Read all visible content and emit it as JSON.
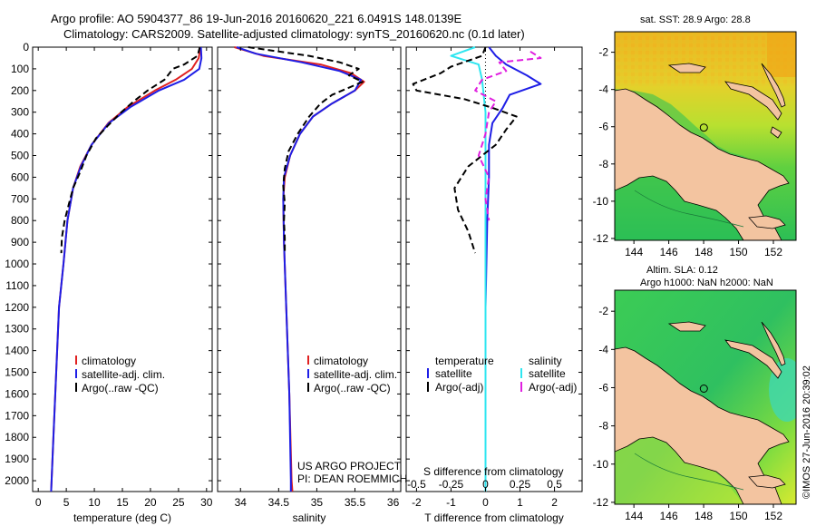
{
  "header": {
    "title_line1": "Argo profile: AO 5904377_86 19-Jun-2016 20160620_221 6.0491S 148.0139E",
    "title_line2": "Climatology: CARS2009. Satellite-adjusted climatology: synTS_20160620.nc (0.1d later)"
  },
  "colors": {
    "climatology": "#e02020",
    "satellite": "#1e1ee6",
    "argo": "#000000",
    "satellite_salinity": "#2ee6f0",
    "argo_adj_salinity": "#e020e0",
    "land": "#f3c4a0"
  },
  "depth_axis": {
    "ylim": [
      0,
      2050
    ],
    "ticks": [
      0,
      100,
      200,
      300,
      400,
      500,
      600,
      700,
      800,
      900,
      1000,
      1100,
      1200,
      1300,
      1400,
      1500,
      1600,
      1700,
      1800,
      1900,
      2000
    ]
  },
  "chart_data": [
    {
      "type": "line",
      "id": "temperature",
      "xlabel": "temperature (deg C)",
      "xlim": [
        -1,
        31
      ],
      "xticks": [
        0,
        5,
        10,
        15,
        20,
        25,
        30
      ],
      "legend": [
        "climatology",
        "satellite-adj. clim.",
        "Argo(..raw -QC)"
      ],
      "series": [
        {
          "name": "climatology",
          "color_key": "climatology",
          "style": "solid",
          "points": [
            [
              28.9,
              0
            ],
            [
              28.6,
              50
            ],
            [
              27.4,
              100
            ],
            [
              24.5,
              150
            ],
            [
              20.8,
              200
            ],
            [
              16,
              275
            ],
            [
              12.5,
              350
            ],
            [
              9.5,
              450
            ],
            [
              7.5,
              550
            ],
            [
              6.2,
              650
            ],
            [
              5.2,
              800
            ],
            [
              4.5,
              1000
            ],
            [
              3.7,
              1200
            ],
            [
              3.2,
              1500
            ],
            [
              2.7,
              1800
            ],
            [
              2.3,
              2050
            ]
          ]
        },
        {
          "name": "satellite-adj. clim.",
          "color_key": "satellite",
          "style": "solid",
          "points": [
            [
              29,
              0
            ],
            [
              29.1,
              50
            ],
            [
              28.7,
              100
            ],
            [
              26,
              150
            ],
            [
              21.5,
              200
            ],
            [
              16.5,
              275
            ],
            [
              12.6,
              350
            ],
            [
              9.5,
              450
            ],
            [
              7.6,
              550
            ],
            [
              6.2,
              650
            ],
            [
              5.2,
              800
            ],
            [
              4.5,
              1000
            ],
            [
              3.7,
              1200
            ],
            [
              3.2,
              1500
            ],
            [
              2.7,
              1800
            ],
            [
              2.3,
              2050
            ]
          ]
        },
        {
          "name": "Argo(..raw -QC)",
          "color_key": "argo",
          "style": "dash",
          "points": [
            [
              28.8,
              0
            ],
            [
              28.4,
              40
            ],
            [
              26,
              80
            ],
            [
              24,
              100
            ],
            [
              22.5,
              150
            ],
            [
              19.5,
              200
            ],
            [
              17,
              250
            ],
            [
              14.8,
              300
            ],
            [
              12.5,
              360
            ],
            [
              10.3,
              420
            ],
            [
              8.6,
              500
            ],
            [
              7.4,
              580
            ],
            [
              6.2,
              650
            ],
            [
              5.5,
              720
            ],
            [
              4.7,
              800
            ],
            [
              4.2,
              880
            ],
            [
              4.1,
              950
            ]
          ]
        }
      ]
    },
    {
      "type": "line",
      "id": "salinity",
      "xlabel": "salinity",
      "xlim": [
        33.7,
        36.1
      ],
      "xticks": [
        34,
        34.5,
        35,
        35.5,
        36
      ],
      "legend": [
        "climatology",
        "satellite-adj. clim.",
        "Argo(..raw -QC)"
      ],
      "annotation": [
        "US ARGO PROJECT",
        "PI: DEAN ROEMMICH"
      ],
      "series": [
        {
          "name": "climatology",
          "color_key": "climatology",
          "style": "solid",
          "points": [
            [
              33.92,
              0
            ],
            [
              34.3,
              40
            ],
            [
              35.05,
              80
            ],
            [
              35.45,
              120
            ],
            [
              35.62,
              160
            ],
            [
              35.5,
              200
            ],
            [
              35.2,
              260
            ],
            [
              34.95,
              320
            ],
            [
              34.78,
              400
            ],
            [
              34.65,
              500
            ],
            [
              34.58,
              600
            ],
            [
              34.56,
              700
            ],
            [
              34.57,
              900
            ],
            [
              34.6,
              1200
            ],
            [
              34.64,
              1600
            ],
            [
              34.67,
              2000
            ],
            [
              34.68,
              2050
            ]
          ]
        },
        {
          "name": "satellite-adj. clim.",
          "color_key": "satellite",
          "style": "solid",
          "points": [
            [
              33.95,
              0
            ],
            [
              34.2,
              30
            ],
            [
              34.8,
              70
            ],
            [
              35.3,
              110
            ],
            [
              35.58,
              150
            ],
            [
              35.5,
              200
            ],
            [
              35.2,
              260
            ],
            [
              34.95,
              320
            ],
            [
              34.78,
              400
            ],
            [
              34.65,
              500
            ],
            [
              34.57,
              600
            ],
            [
              34.56,
              700
            ],
            [
              34.57,
              900
            ],
            [
              34.6,
              1200
            ],
            [
              34.64,
              1600
            ],
            [
              34.66,
              2000
            ],
            [
              34.66,
              2050
            ]
          ]
        },
        {
          "name": "Argo(..raw -QC)",
          "color_key": "argo",
          "style": "dash",
          "points": [
            [
              34.1,
              0
            ],
            [
              34.9,
              40
            ],
            [
              35.3,
              70
            ],
            [
              35.55,
              100
            ],
            [
              35.42,
              130
            ],
            [
              35.6,
              160
            ],
            [
              35.2,
              220
            ],
            [
              35.05,
              260
            ],
            [
              34.9,
              320
            ],
            [
              34.75,
              400
            ],
            [
              34.63,
              480
            ],
            [
              34.58,
              560
            ],
            [
              34.56,
              640
            ],
            [
              34.58,
              720
            ],
            [
              34.57,
              800
            ],
            [
              34.58,
              880
            ],
            [
              34.58,
              950
            ]
          ]
        }
      ]
    },
    {
      "type": "line",
      "id": "difference",
      "xlabel_t": "T difference from climatology",
      "xlabel_s": "S difference from climatology",
      "xlim": [
        -2.3,
        2.8
      ],
      "xticks_t": [
        -2,
        -1,
        0,
        1,
        2
      ],
      "xticks_s": [
        {
          "label": "-0.5",
          "x": -2
        },
        {
          "label": "-0.25",
          "x": -1
        },
        {
          "label": "0",
          "x": 0
        },
        {
          "label": "0.25",
          "x": 1
        },
        {
          "label": "0.5",
          "x": 2
        }
      ],
      "legend": {
        "temperature_header": "temperature",
        "salinity_header": "salinity",
        "temperature_items": [
          "satellite",
          "Argo(-adj)"
        ],
        "salinity_items": [
          "satellite",
          "Argo(-adj)"
        ]
      },
      "series": [
        {
          "name": "T satellite",
          "color_key": "satellite",
          "style": "solid",
          "points": [
            [
              0.1,
              0
            ],
            [
              0.3,
              40
            ],
            [
              0.6,
              80
            ],
            [
              1.2,
              130
            ],
            [
              1.6,
              170
            ],
            [
              0.7,
              220
            ],
            [
              0.5,
              280
            ],
            [
              0.2,
              350
            ],
            [
              0.1,
              450
            ],
            [
              0.1,
              600
            ],
            [
              0.05,
              800
            ],
            [
              0,
              1200
            ],
            [
              0,
              2050
            ]
          ]
        },
        {
          "name": "S satellite",
          "color_key": "satellite_salinity",
          "style": "solid",
          "points": [
            [
              -0.3,
              0
            ],
            [
              -1,
              40
            ],
            [
              -0.2,
              80
            ],
            [
              -0.1,
              150
            ],
            [
              0,
              300
            ],
            [
              0,
              800
            ],
            [
              0,
              2050
            ]
          ]
        },
        {
          "name": "T Argo(-adj)",
          "color_key": "argo",
          "style": "dash",
          "points": [
            [
              0,
              0
            ],
            [
              -0.1,
              40
            ],
            [
              -1,
              90
            ],
            [
              -1.3,
              120
            ],
            [
              -2.1,
              170
            ],
            [
              -2,
              200
            ],
            [
              -0.6,
              240
            ],
            [
              0.2,
              280
            ],
            [
              0.9,
              320
            ],
            [
              0.6,
              380
            ],
            [
              0.3,
              450
            ],
            [
              -0.5,
              550
            ],
            [
              -0.9,
              650
            ],
            [
              -0.8,
              750
            ],
            [
              -0.5,
              850
            ],
            [
              -0.3,
              950
            ]
          ]
        },
        {
          "name": "S Argo(-adj)",
          "color_key": "argo_adj_salinity",
          "style": "dash",
          "points": [
            [
              1.3,
              20
            ],
            [
              1.6,
              50
            ],
            [
              0.4,
              70
            ],
            [
              0.6,
              110
            ],
            [
              -0.1,
              150
            ],
            [
              -0.3,
              200
            ],
            [
              0.3,
              250
            ],
            [
              0.1,
              300
            ],
            [
              0,
              400
            ],
            [
              -0.2,
              500
            ],
            [
              0.1,
              600
            ],
            [
              0,
              700
            ],
            [
              0.1,
              800
            ]
          ]
        }
      ]
    },
    {
      "type": "heatmap",
      "id": "sst_map",
      "title": "sat. SST: 28.9 Argo: 28.8",
      "xlim": [
        142.9,
        153.3
      ],
      "ylim": [
        -12.1,
        -0.9
      ],
      "xticks": [
        144,
        146,
        148,
        150,
        152
      ],
      "yticks": [
        -2,
        -4,
        -6,
        -8,
        -10,
        -12
      ],
      "argo_position": [
        148.0139,
        -6.0491
      ]
    },
    {
      "type": "heatmap",
      "id": "sla_map",
      "title_line1": "Altim. SLA: 0.12",
      "title_line2": "Argo h1000: NaN h2000: NaN",
      "xlim": [
        142.9,
        153.3
      ],
      "ylim": [
        -12.1,
        -0.9
      ],
      "xticks": [
        144,
        146,
        148,
        150,
        152
      ],
      "yticks": [
        -2,
        -4,
        -6,
        -8,
        -10,
        -12
      ],
      "argo_position": [
        148.0139,
        -6.0491
      ]
    }
  ],
  "footer": {
    "stamp": "©IMOS 27-Jun-2016 20:39:02"
  }
}
